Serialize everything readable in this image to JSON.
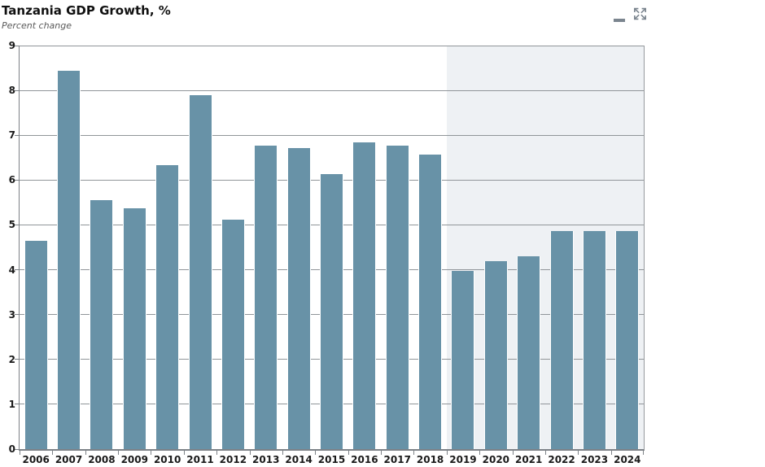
{
  "header": {
    "icons": {
      "menu": "hamburger-menu",
      "expand": "expand-fullscreen"
    },
    "icon_color": "#7b858f"
  },
  "chart_data": {
    "type": "bar",
    "title": "Tanzania GDP Growth, %",
    "subtitle": "Percent change",
    "categories": [
      "2006",
      "2007",
      "2008",
      "2009",
      "2010",
      "2011",
      "2012",
      "2013",
      "2014",
      "2015",
      "2016",
      "2017",
      "2018",
      "2019",
      "2020",
      "2021",
      "2022",
      "2023",
      "2024"
    ],
    "values": [
      4.65,
      8.43,
      5.55,
      5.37,
      6.33,
      7.9,
      5.11,
      6.77,
      6.71,
      6.14,
      6.84,
      6.77,
      6.57,
      3.98,
      4.2,
      4.3,
      4.87,
      4.87,
      4.87
    ],
    "ylim": [
      0,
      9
    ],
    "ytick_step": 1,
    "grid": true,
    "legend": "none",
    "bar_color": "#6892a7",
    "gridline_color": "#909599",
    "axis_color": "#7d8287",
    "label_color": "#1a1a1a",
    "forecast": {
      "start_category": "2019",
      "bg_color": "#eef1f4"
    }
  }
}
